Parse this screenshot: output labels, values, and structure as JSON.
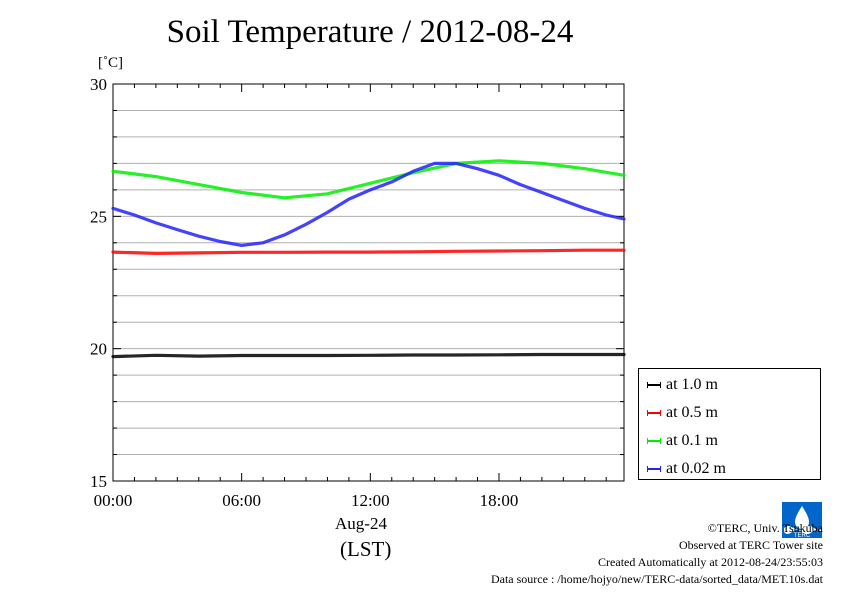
{
  "chart_data": {
    "type": "line",
    "title": "Soil Temperature / 2012-08-24",
    "ylabel": "[˚C]",
    "ylim": [
      15,
      30
    ],
    "yticks": [
      15,
      20,
      25,
      30
    ],
    "xlim": [
      0,
      23.83
    ],
    "xticks": [
      0,
      6,
      12,
      18
    ],
    "xtick_labels": [
      "00:00",
      "06:00",
      "12:00",
      "18:00"
    ],
    "xlabel_date": "Aug-24",
    "xlabel": "(LST)",
    "grid": true,
    "legend_position": "bottom-right",
    "series": [
      {
        "name": "at 1.0 m",
        "color": "#000000",
        "x": [
          0,
          2,
          4,
          6,
          8,
          10,
          12,
          14,
          16,
          18,
          20,
          22,
          23.83
        ],
        "y": [
          19.7,
          19.75,
          19.72,
          19.74,
          19.74,
          19.74,
          19.75,
          19.76,
          19.76,
          19.77,
          19.78,
          19.78,
          19.78
        ]
      },
      {
        "name": "at 0.5 m",
        "color": "#ff0000",
        "x": [
          0,
          2,
          4,
          6,
          8,
          10,
          12,
          14,
          16,
          18,
          20,
          22,
          23.83
        ],
        "y": [
          23.65,
          23.6,
          23.62,
          23.64,
          23.64,
          23.65,
          23.65,
          23.66,
          23.68,
          23.69,
          23.7,
          23.72,
          23.72
        ]
      },
      {
        "name": "at 0.1 m",
        "color": "#00ee00",
        "x": [
          0,
          2,
          4,
          6,
          8,
          10,
          12,
          14,
          16,
          18,
          20,
          22,
          23.83
        ],
        "y": [
          26.7,
          26.5,
          26.2,
          25.9,
          25.7,
          25.85,
          26.25,
          26.65,
          27.0,
          27.1,
          27.0,
          26.8,
          26.55
        ]
      },
      {
        "name": "at 0.02 m",
        "color": "#2222ff",
        "x": [
          0,
          1,
          2,
          3,
          4,
          5,
          6,
          7,
          8,
          9,
          10,
          11,
          12,
          13,
          14,
          15,
          16,
          17,
          18,
          19,
          20,
          21,
          22,
          23,
          23.83
        ],
        "y": [
          25.3,
          25.05,
          24.75,
          24.5,
          24.25,
          24.05,
          23.9,
          24.0,
          24.3,
          24.7,
          25.15,
          25.65,
          26.0,
          26.3,
          26.7,
          27.0,
          27.0,
          26.8,
          26.55,
          26.2,
          25.9,
          25.6,
          25.3,
          25.05,
          24.9
        ]
      }
    ]
  },
  "credits": {
    "copyright": "©TERC, Univ. Tsukuba",
    "observed": "Observed at TERC Tower site",
    "created": "Created Automatically at 2012-08-24/23:55:03",
    "source": "Data source : /home/hojyo/new/TERC-data/sorted_data/MET.10s.dat"
  },
  "logo": {
    "name": "terc-logo",
    "color": "#0066cc"
  }
}
